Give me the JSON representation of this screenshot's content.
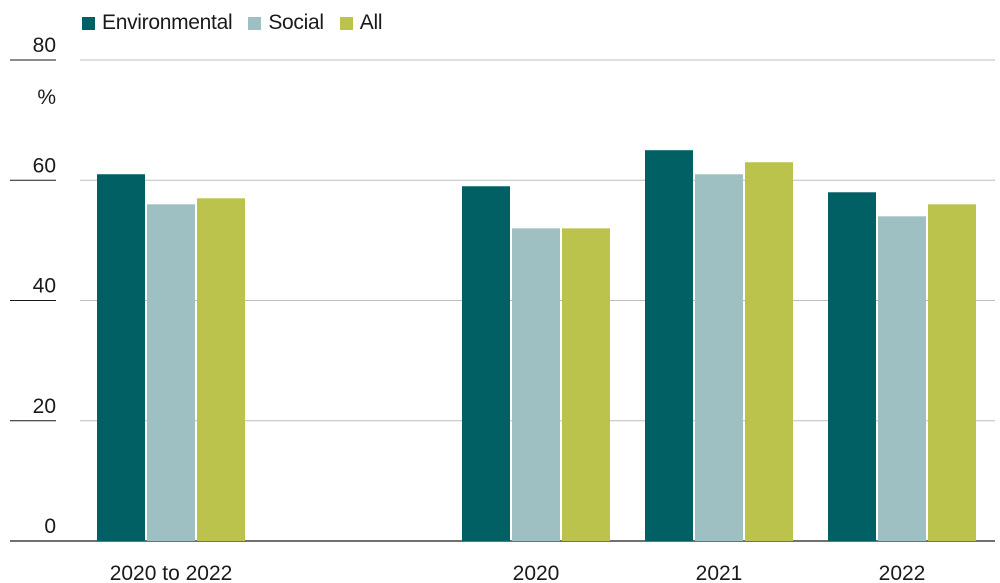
{
  "chart_data": {
    "type": "bar",
    "categories": [
      "2020 to 2022",
      "2020",
      "2021",
      "2022"
    ],
    "series": [
      {
        "name": "Environmental",
        "color": "#006064",
        "values": [
          61,
          59,
          65,
          58
        ]
      },
      {
        "name": "Social",
        "color": "#9fc0c2",
        "values": [
          56,
          52,
          61,
          54
        ]
      },
      {
        "name": "All",
        "color": "#bcc34c",
        "values": [
          57,
          52,
          63,
          56
        ]
      }
    ],
    "y_ticks": [
      "0",
      "20",
      "40",
      "60",
      "80"
    ],
    "y_unit": "%",
    "ylim": [
      0,
      80
    ],
    "grid": true,
    "legend_position": "top-left"
  }
}
